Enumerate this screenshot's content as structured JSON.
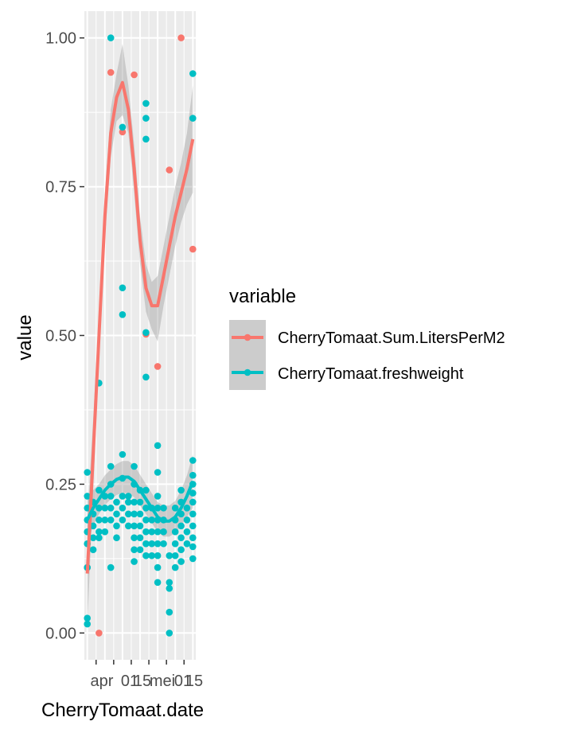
{
  "chart_data": {
    "type": "scatter",
    "xlabel": "CherryTomaat.date",
    "ylabel": "value",
    "x_tick_labels": [
      "apr",
      "01",
      "15",
      "mei",
      "01",
      "15"
    ],
    "x_range": [
      -0.5,
      18.5
    ],
    "ylim": [
      -0.045,
      1.045
    ],
    "y_ticks": [
      "0.00",
      "0.25",
      "0.50",
      "0.75",
      "1.00"
    ],
    "y_tick_values": [
      0,
      0.25,
      0.5,
      0.75,
      1.0
    ],
    "grid": true,
    "background": "#EBEBEB",
    "legend": {
      "title": "variable",
      "position": "right",
      "entries": [
        "CherryTomaat.Sum.LitersPerM2",
        "CherryTomaat.freshweight"
      ]
    },
    "series": [
      {
        "name": "CherryTomaat.Sum.LitersPerM2",
        "color": "#F8766D",
        "points": [
          [
            0,
            0.11
          ],
          [
            2,
            0.0
          ],
          [
            4,
            0.942
          ],
          [
            6,
            0.842
          ],
          [
            8,
            0.938
          ],
          [
            10,
            0.502
          ],
          [
            12,
            0.448
          ],
          [
            14,
            0.778
          ],
          [
            16,
            1.0
          ],
          [
            18,
            0.645
          ]
        ],
        "smooth": {
          "x": [
            0,
            1,
            2,
            3,
            4,
            5,
            6,
            7,
            8,
            9,
            10,
            11,
            12,
            13,
            14,
            15,
            16,
            17,
            18
          ],
          "y": [
            0.1,
            0.3,
            0.5,
            0.7,
            0.84,
            0.9,
            0.925,
            0.88,
            0.78,
            0.66,
            0.58,
            0.55,
            0.55,
            0.6,
            0.65,
            0.7,
            0.74,
            0.78,
            0.83
          ],
          "lower": [
            0.01,
            0.24,
            0.46,
            0.66,
            0.8,
            0.86,
            0.87,
            0.84,
            0.74,
            0.62,
            0.54,
            0.51,
            0.49,
            0.55,
            0.6,
            0.65,
            0.69,
            0.72,
            0.74
          ],
          "upper": [
            0.19,
            0.36,
            0.54,
            0.74,
            0.88,
            0.94,
            0.99,
            0.92,
            0.82,
            0.7,
            0.62,
            0.59,
            0.6,
            0.65,
            0.7,
            0.75,
            0.79,
            0.84,
            0.92
          ]
        }
      },
      {
        "name": "CherryTomaat.freshweight",
        "color": "#00BFC4",
        "points": [
          [
            0,
            0.27
          ],
          [
            0,
            0.23
          ],
          [
            0,
            0.21
          ],
          [
            0,
            0.19
          ],
          [
            0,
            0.17
          ],
          [
            0,
            0.15
          ],
          [
            0,
            0.11
          ],
          [
            0,
            0.025
          ],
          [
            0,
            0.015
          ],
          [
            1,
            0.22
          ],
          [
            1,
            0.2
          ],
          [
            1,
            0.18
          ],
          [
            1,
            0.16
          ],
          [
            1,
            0.14
          ],
          [
            2,
            0.42
          ],
          [
            2,
            0.24
          ],
          [
            2,
            0.21
          ],
          [
            2,
            0.19
          ],
          [
            2,
            0.17
          ],
          [
            2,
            0.16
          ],
          [
            3,
            0.23
          ],
          [
            3,
            0.21
          ],
          [
            3,
            0.19
          ],
          [
            3,
            0.17
          ],
          [
            4,
            1.0
          ],
          [
            4,
            0.28
          ],
          [
            4,
            0.25
          ],
          [
            4,
            0.23
          ],
          [
            4,
            0.21
          ],
          [
            4,
            0.19
          ],
          [
            4,
            0.11
          ],
          [
            5,
            0.22
          ],
          [
            5,
            0.2
          ],
          [
            5,
            0.18
          ],
          [
            5,
            0.16
          ],
          [
            6,
            0.85
          ],
          [
            6,
            0.58
          ],
          [
            6,
            0.535
          ],
          [
            6,
            0.3
          ],
          [
            6,
            0.26
          ],
          [
            6,
            0.23
          ],
          [
            6,
            0.21
          ],
          [
            6,
            0.19
          ],
          [
            7,
            0.23
          ],
          [
            7,
            0.22
          ],
          [
            7,
            0.2
          ],
          [
            7,
            0.18
          ],
          [
            8,
            0.28
          ],
          [
            8,
            0.25
          ],
          [
            8,
            0.22
          ],
          [
            8,
            0.2
          ],
          [
            8,
            0.18
          ],
          [
            8,
            0.16
          ],
          [
            8,
            0.14
          ],
          [
            8,
            0.12
          ],
          [
            9,
            0.24
          ],
          [
            9,
            0.22
          ],
          [
            9,
            0.2
          ],
          [
            9,
            0.18
          ],
          [
            9,
            0.16
          ],
          [
            9,
            0.14
          ],
          [
            10,
            0.89
          ],
          [
            10,
            0.865
          ],
          [
            10,
            0.83
          ],
          [
            10,
            0.505
          ],
          [
            10,
            0.43
          ],
          [
            10,
            0.24
          ],
          [
            10,
            0.21
          ],
          [
            10,
            0.19
          ],
          [
            10,
            0.17
          ],
          [
            10,
            0.15
          ],
          [
            10,
            0.13
          ],
          [
            11,
            0.21
          ],
          [
            11,
            0.19
          ],
          [
            11,
            0.17
          ],
          [
            11,
            0.15
          ],
          [
            11,
            0.13
          ],
          [
            12,
            0.315
          ],
          [
            12,
            0.27
          ],
          [
            12,
            0.23
          ],
          [
            12,
            0.21
          ],
          [
            12,
            0.19
          ],
          [
            12,
            0.17
          ],
          [
            12,
            0.15
          ],
          [
            12,
            0.13
          ],
          [
            12,
            0.11
          ],
          [
            12,
            0.085
          ],
          [
            13,
            0.21
          ],
          [
            13,
            0.19
          ],
          [
            13,
            0.17
          ],
          [
            13,
            0.15
          ],
          [
            14,
            0.085
          ],
          [
            14,
            0.075
          ],
          [
            14,
            0.035
          ],
          [
            14,
            0.0
          ],
          [
            14,
            0.13
          ],
          [
            15,
            0.21
          ],
          [
            15,
            0.19
          ],
          [
            15,
            0.17
          ],
          [
            15,
            0.15
          ],
          [
            15,
            0.13
          ],
          [
            15,
            0.11
          ],
          [
            16,
            0.24
          ],
          [
            16,
            0.22
          ],
          [
            16,
            0.2
          ],
          [
            16,
            0.18
          ],
          [
            16,
            0.16
          ],
          [
            16,
            0.14
          ],
          [
            16,
            0.12
          ],
          [
            17,
            0.21
          ],
          [
            17,
            0.19
          ],
          [
            17,
            0.17
          ],
          [
            17,
            0.15
          ],
          [
            18,
            0.94
          ],
          [
            18,
            0.865
          ],
          [
            18,
            0.29
          ],
          [
            18,
            0.265
          ],
          [
            18,
            0.25
          ],
          [
            18,
            0.235
          ],
          [
            18,
            0.22
          ],
          [
            18,
            0.2
          ],
          [
            18,
            0.18
          ],
          [
            18,
            0.16
          ],
          [
            18,
            0.145
          ],
          [
            18,
            0.125
          ]
        ],
        "smooth": {
          "x": [
            0,
            1,
            2,
            3,
            4,
            5,
            6,
            7,
            8,
            9,
            10,
            11,
            12,
            13,
            14,
            15,
            16,
            17,
            18
          ],
          "y": [
            0.19,
            0.21,
            0.225,
            0.24,
            0.25,
            0.258,
            0.262,
            0.262,
            0.255,
            0.24,
            0.225,
            0.21,
            0.195,
            0.188,
            0.188,
            0.195,
            0.21,
            0.23,
            0.255
          ],
          "lower": [
            0.15,
            0.18,
            0.2,
            0.215,
            0.225,
            0.232,
            0.235,
            0.235,
            0.228,
            0.214,
            0.2,
            0.185,
            0.17,
            0.162,
            0.162,
            0.168,
            0.18,
            0.195,
            0.21
          ],
          "upper": [
            0.23,
            0.24,
            0.25,
            0.265,
            0.275,
            0.284,
            0.289,
            0.289,
            0.282,
            0.266,
            0.25,
            0.235,
            0.22,
            0.214,
            0.214,
            0.222,
            0.24,
            0.265,
            0.3
          ]
        }
      }
    ]
  }
}
